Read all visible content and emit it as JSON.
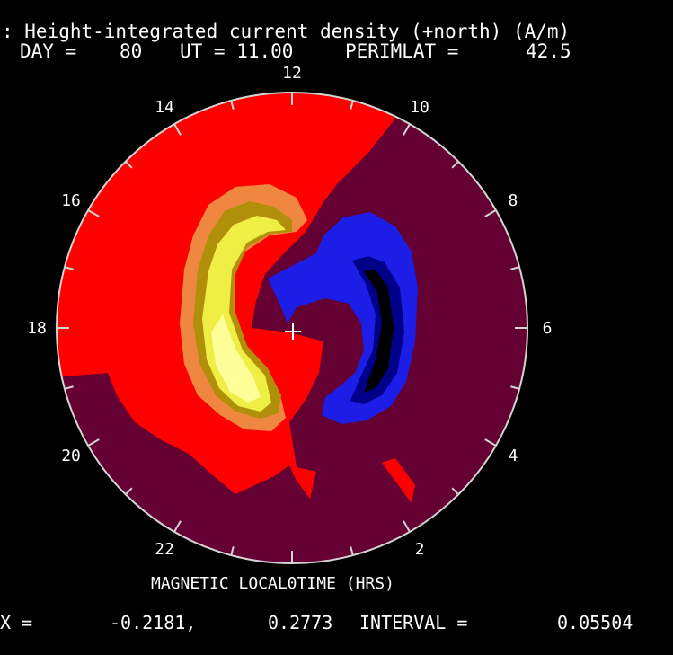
{
  "header": {
    "title": ": Height-integrated current density (+north) (A/m)",
    "day_label": "DAY =",
    "day_value": "80",
    "ut_label": "UT = 11.00",
    "perimlat_label": "PERIMLAT =",
    "perimlat_value": "42.5"
  },
  "mlt_ticks": [
    "12",
    "14",
    "16",
    "18",
    "20",
    "22",
    "0",
    "2",
    "4",
    "6",
    "8",
    "10"
  ],
  "axis_label": "MAGNETIC LOCAL TIME (HRS)",
  "footer": {
    "range_label": "X =",
    "min_value": "-0.2181,",
    "max_value": "0.2773",
    "interval_label": "INTERVAL =",
    "interval_value": "0.05504"
  },
  "contour_colors": {
    "background": "#000000",
    "outer_region": "#650033",
    "main_positive": "#ff0000",
    "orange_band": "#ef8740",
    "olive_band": "#b0900a",
    "yellow_band": "#eeee44",
    "light_yellow_core": "#ffff99",
    "blue_outer": "#1d1de8",
    "blue_mid": "#000088",
    "negative_core": "#000000"
  }
}
